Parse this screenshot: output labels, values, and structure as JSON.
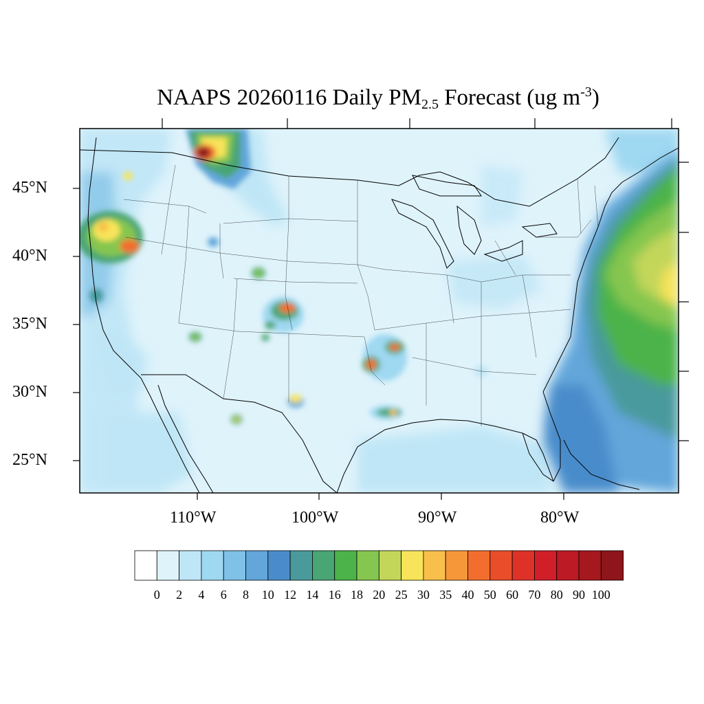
{
  "title": {
    "prefix": "NAAPS 20260116 Daily PM",
    "subscript": "2.5",
    "middle": " Forecast (ug m",
    "superscript": "-3",
    "suffix": ")"
  },
  "map": {
    "region": "Contiguous United States",
    "latitude_labels": [
      "45°N",
      "40°N",
      "35°N",
      "30°N",
      "25°N"
    ],
    "longitude_labels": [
      "110°W",
      "100°W",
      "90°W",
      "80°W"
    ],
    "background_color": "#dff3fb",
    "border_color": "#000000",
    "hotspots": [
      {
        "location": "Northern Idaho / Montana border",
        "level": "80-100"
      },
      {
        "location": "Southern Oregon / Northern California",
        "level": "30-50"
      },
      {
        "location": "Southeastern Colorado",
        "level": "40-60"
      },
      {
        "location": "Eastern Oklahoma / Arkansas",
        "level": "40-60"
      },
      {
        "location": "Northeast Texas",
        "level": "40-50"
      },
      {
        "location": "Southeast Texas",
        "level": "25-35"
      },
      {
        "location": "West Texas",
        "level": "25-30"
      },
      {
        "location": "Atlantic off Northeast coast",
        "level": "16-35"
      }
    ]
  },
  "colorbar": {
    "labels": [
      "0",
      "2",
      "4",
      "6",
      "8",
      "10",
      "12",
      "14",
      "16",
      "18",
      "20",
      "25",
      "30",
      "35",
      "40",
      "50",
      "60",
      "70",
      "80",
      "90",
      "100"
    ],
    "colors": [
      "#ffffff",
      "#dff3fb",
      "#bfe6f6",
      "#9fd8f1",
      "#7fc1e7",
      "#62a6da",
      "#4a8ccb",
      "#4a9a9c",
      "#4aa574",
      "#4bb34a",
      "#85c650",
      "#c3d65a",
      "#f8e45a",
      "#f8bf4a",
      "#f6973a",
      "#f36e2e",
      "#ea4d2a",
      "#de3228",
      "#d11f2a",
      "#bc1a24",
      "#a5181e",
      "#8e151a"
    ]
  }
}
